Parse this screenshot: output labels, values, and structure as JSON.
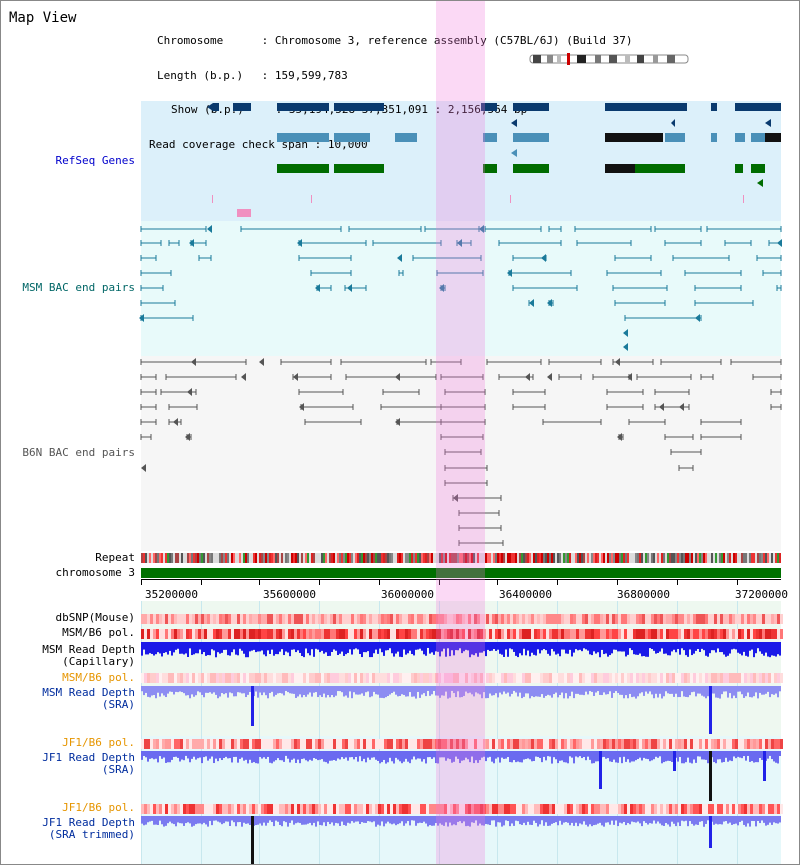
{
  "title": "Map View",
  "info": {
    "chromosome_label": "Chromosome",
    "chromosome_value": "Chromosome 3, reference assembly (C57BL/6J) (Build 37)",
    "length_label": "Length (b.p.)",
    "length_value": "159,599,783",
    "show_label": "Show (b.p.)",
    "show_value": "35,194,528-37,351,091 : 2,156,564 bp",
    "coverage_label": "Read coverage check span",
    "coverage_value": "10,000"
  },
  "tracks": {
    "refseq": "RefSeq Genes",
    "msm_bac": "MSM BAC end pairs",
    "b6n_bac": "B6N BAC end pairs",
    "repeat": "Repeat",
    "chromosome": "chromosome 3",
    "dbsnp": "dbSNP(Mouse)",
    "msm_b6_pol": "MSM/B6 pol.",
    "msm_read_depth_cap_1": "MSM Read Depth",
    "msm_read_depth_cap_2": "(Capillary)",
    "msm_b6_pol_2": "MSM/B6 pol.",
    "msm_read_depth_sra_1": "MSM Read Depth",
    "msm_read_depth_sra_2": "(SRA)",
    "jf1_b6_pol": "JF1/B6 pol.",
    "jf1_read_depth_sra_1": "JF1 Read Depth",
    "jf1_read_depth_sra_2": "(SRA)",
    "jf1_b6_pol_2": "JF1/B6 pol.",
    "jf1_read_depth_trim_1": "JF1 Read Depth",
    "jf1_read_depth_trim_2": "(SRA trimmed)"
  },
  "axis": {
    "ticks": [
      "35200000",
      "35600000",
      "36000000",
      "36400000",
      "36800000",
      "37200000"
    ]
  },
  "colors": {
    "refseq_bg": "#dcf0fa",
    "msm_bg": "#e8fafa",
    "b6n_bg": "#f4f4f4",
    "dark_navy": "#003366",
    "steel_blue": "#4a90b8",
    "green": "#007000",
    "highlight": "#f0a0e0",
    "depth_blue": "#2020ee",
    "depth_light": "#8080f0"
  }
}
